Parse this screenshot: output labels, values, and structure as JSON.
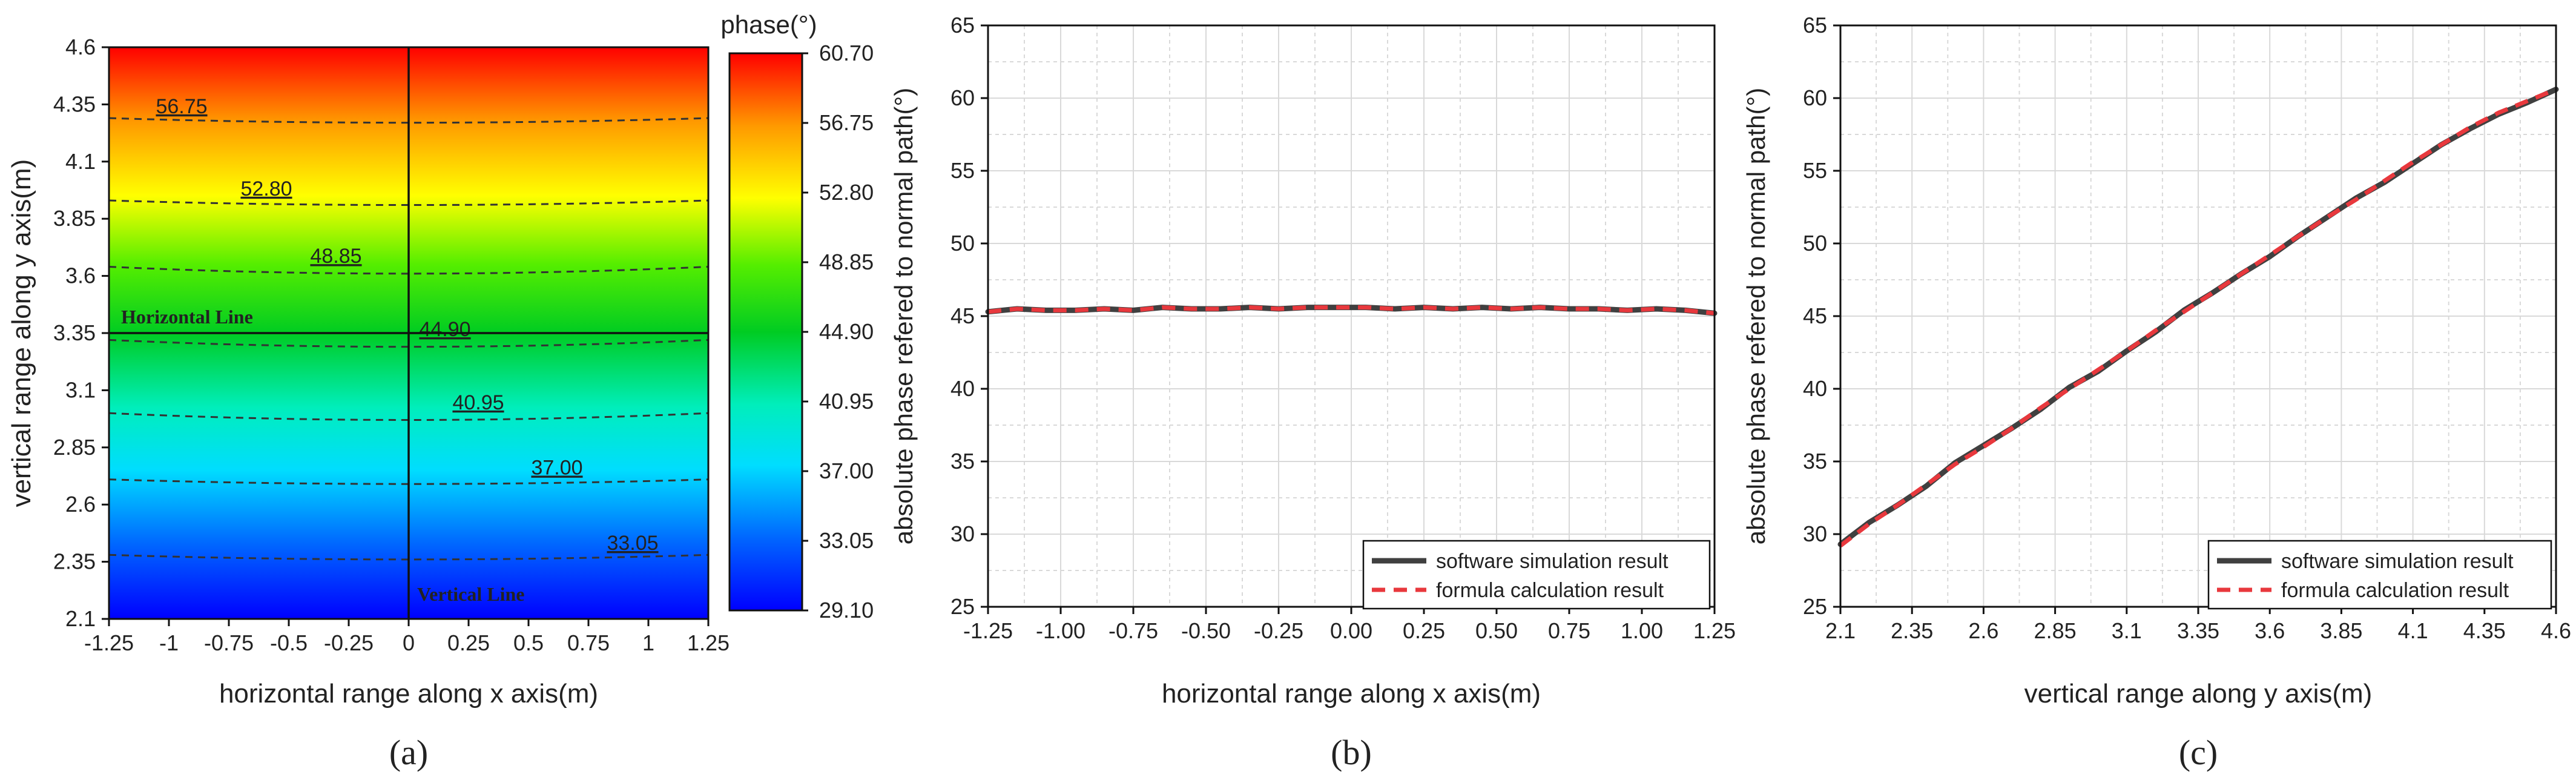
{
  "chart_data": [
    {
      "panel": "a",
      "type": "heatmap",
      "title": "",
      "xlabel": "horizontal range along x axis(m)",
      "ylabel": "vertical range along y axis(m)",
      "xlim": [
        -1.25,
        1.25
      ],
      "ylim": [
        2.1,
        4.6
      ],
      "xticks": [
        "-1.25",
        "-1",
        "-0.75",
        "-0.5",
        "-0.25",
        "0",
        "0.25",
        "0.5",
        "0.75",
        "1",
        "1.25"
      ],
      "yticks": [
        "2.1",
        "2.35",
        "2.6",
        "2.85",
        "3.1",
        "3.35",
        "3.6",
        "3.85",
        "4.1",
        "4.35",
        "4.6"
      ],
      "colorbar": {
        "label": "phase(°)",
        "min": 29.1,
        "max": 60.7,
        "ticks": [
          "60.70",
          "56.75",
          "52.80",
          "48.85",
          "44.90",
          "40.95",
          "37.00",
          "33.05",
          "29.10"
        ]
      },
      "contours": [
        {
          "label": "56.75",
          "y_edge": 4.29,
          "y_center": 4.27
        },
        {
          "label": "52.80",
          "y_edge": 3.93,
          "y_center": 3.91
        },
        {
          "label": "48.85",
          "y_edge": 3.64,
          "y_center": 3.61
        },
        {
          "label": "44.90",
          "y_edge": 3.32,
          "y_center": 3.29
        },
        {
          "label": "40.95",
          "y_edge": 3.0,
          "y_center": 2.97
        },
        {
          "label": "37.00",
          "y_edge": 2.71,
          "y_center": 2.69
        },
        {
          "label": "33.05",
          "y_edge": 2.38,
          "y_center": 2.36
        }
      ],
      "reference_lines": [
        {
          "label": "Horizontal Line",
          "orientation": "horizontal",
          "value": 3.35
        },
        {
          "label": "Vertical Line",
          "orientation": "vertical",
          "value": 0
        }
      ],
      "caption": "(a)"
    },
    {
      "panel": "b",
      "type": "line",
      "xlabel": "horizontal range along x axis(m)",
      "ylabel": "absolute phase refered to normal path(°)",
      "xlim": [
        -1.25,
        1.25
      ],
      "ylim": [
        25,
        65
      ],
      "grid": true,
      "legend_position": "bottom-right",
      "xticks": [
        "-1.25",
        "-1.00",
        "-0.75",
        "-0.50",
        "-0.25",
        "0.00",
        "0.25",
        "0.50",
        "0.75",
        "1.00",
        "1.25"
      ],
      "yticks": [
        "25",
        "30",
        "35",
        "40",
        "45",
        "50",
        "55",
        "60",
        "65"
      ],
      "x": [
        -1.25,
        -1.15,
        -1.05,
        -0.95,
        -0.85,
        -0.75,
        -0.65,
        -0.55,
        -0.45,
        -0.35,
        -0.25,
        -0.15,
        -0.05,
        0.05,
        0.15,
        0.25,
        0.35,
        0.45,
        0.55,
        0.65,
        0.75,
        0.85,
        0.95,
        1.05,
        1.15,
        1.25
      ],
      "series": [
        {
          "name": "software simulation result",
          "color": "#404040",
          "values": [
            45.3,
            45.5,
            45.4,
            45.4,
            45.5,
            45.4,
            45.6,
            45.5,
            45.5,
            45.6,
            45.5,
            45.6,
            45.6,
            45.6,
            45.5,
            45.6,
            45.5,
            45.6,
            45.5,
            45.6,
            45.5,
            45.5,
            45.4,
            45.5,
            45.4,
            45.2
          ]
        },
        {
          "name": "formula calculation result",
          "color": "#e8383d",
          "values": [
            45.3,
            45.5,
            45.4,
            45.4,
            45.5,
            45.4,
            45.6,
            45.5,
            45.5,
            45.6,
            45.5,
            45.6,
            45.6,
            45.6,
            45.5,
            45.6,
            45.5,
            45.6,
            45.5,
            45.6,
            45.5,
            45.5,
            45.4,
            45.5,
            45.4,
            45.2
          ]
        }
      ],
      "caption": "(b)"
    },
    {
      "panel": "c",
      "type": "line",
      "xlabel": "vertical range along y axis(m)",
      "ylabel": "absolute phase refered to normal path(°)",
      "xlim": [
        2.1,
        4.6
      ],
      "ylim": [
        25,
        65
      ],
      "grid": true,
      "legend_position": "bottom-right",
      "xticks": [
        "2.1",
        "2.35",
        "2.6",
        "2.85",
        "3.1",
        "3.35",
        "3.6",
        "3.85",
        "4.1",
        "4.35",
        "4.6"
      ],
      "yticks": [
        "25",
        "30",
        "35",
        "40",
        "45",
        "50",
        "55",
        "60",
        "65"
      ],
      "x": [
        2.1,
        2.2,
        2.3,
        2.4,
        2.5,
        2.6,
        2.7,
        2.8,
        2.9,
        3.0,
        3.1,
        3.2,
        3.3,
        3.4,
        3.5,
        3.6,
        3.7,
        3.8,
        3.9,
        4.0,
        4.1,
        4.2,
        4.3,
        4.4,
        4.5,
        4.6
      ],
      "series": [
        {
          "name": "software simulation result",
          "color": "#404040",
          "values": [
            29.3,
            30.8,
            32.0,
            33.3,
            34.9,
            36.1,
            37.3,
            38.6,
            40.1,
            41.2,
            42.6,
            43.9,
            45.4,
            46.6,
            47.9,
            49.1,
            50.5,
            51.8,
            53.1,
            54.2,
            55.5,
            56.8,
            57.9,
            58.9,
            59.7,
            60.6
          ]
        },
        {
          "name": "formula calculation result",
          "color": "#e8383d",
          "values": [
            29.2,
            30.7,
            32.0,
            33.4,
            34.8,
            36.0,
            37.3,
            38.7,
            40.0,
            41.3,
            42.6,
            44.0,
            45.3,
            46.6,
            47.9,
            49.2,
            50.5,
            51.8,
            53.0,
            54.3,
            55.6,
            56.8,
            58.0,
            59.0,
            59.8,
            60.6
          ]
        }
      ],
      "caption": "(c)"
    }
  ]
}
